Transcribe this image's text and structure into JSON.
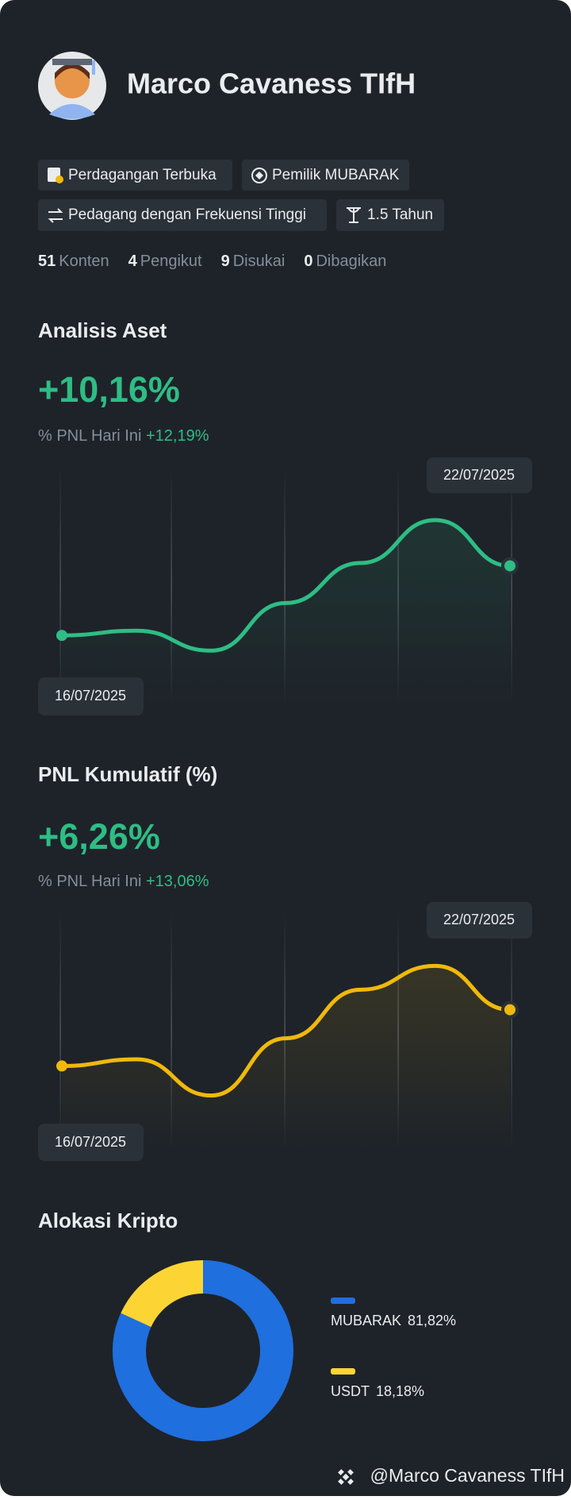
{
  "profile": {
    "name": "Marco Cavaness TIfH"
  },
  "badges": [
    "Perdagangan Terbuka",
    "Pemilik MUBARAK",
    "Pedagang dengan Frekuensi Tinggi",
    "1.5 Tahun"
  ],
  "stats": [
    {
      "value": 51,
      "label": "Konten"
    },
    {
      "value": 4,
      "label": "Pengikut"
    },
    {
      "value": 9,
      "label": "Disukai"
    },
    {
      "value": 0,
      "label": "Dibagikan"
    }
  ],
  "asset_analysis": {
    "title": "Analisis Aset",
    "value": "+10,16%",
    "pnl_label": "% PNL Hari Ini",
    "pnl_value": "+12,19%",
    "chart": {
      "type": "line",
      "categories": [
        "16/07/2025",
        null,
        null,
        null,
        null,
        null,
        "22/07/2025"
      ],
      "values": [
        34,
        39,
        18,
        68,
        110,
        155,
        107
      ],
      "color": "#2ebd85",
      "ylim": [
        0,
        160
      ]
    }
  },
  "cumulative_pnl": {
    "title": "PNL Kumulatif (%)",
    "value": "+6,26%",
    "pnl_label": "% PNL Hari Ini",
    "pnl_value": "+13,06%",
    "chart": {
      "type": "line",
      "categories": [
        "16/07/2025",
        null,
        null,
        null,
        null,
        null,
        "22/07/2025"
      ],
      "values": [
        33,
        40,
        2,
        62,
        113,
        138,
        92
      ],
      "color": "#f0b90b",
      "ylim": [
        0,
        160
      ]
    }
  },
  "crypto_allocation": {
    "title": "Alokasi Kripto",
    "chart": {
      "type": "pie",
      "categories": [
        "MUBARAK",
        "USDT"
      ],
      "values": [
        81.82,
        18.18
      ],
      "value_labels": [
        "81,82%",
        "18,18%"
      ],
      "colors": [
        "#1f6fde",
        "#fcd535"
      ]
    }
  },
  "footer": {
    "handle": "@Marco Cavaness TIfH"
  }
}
